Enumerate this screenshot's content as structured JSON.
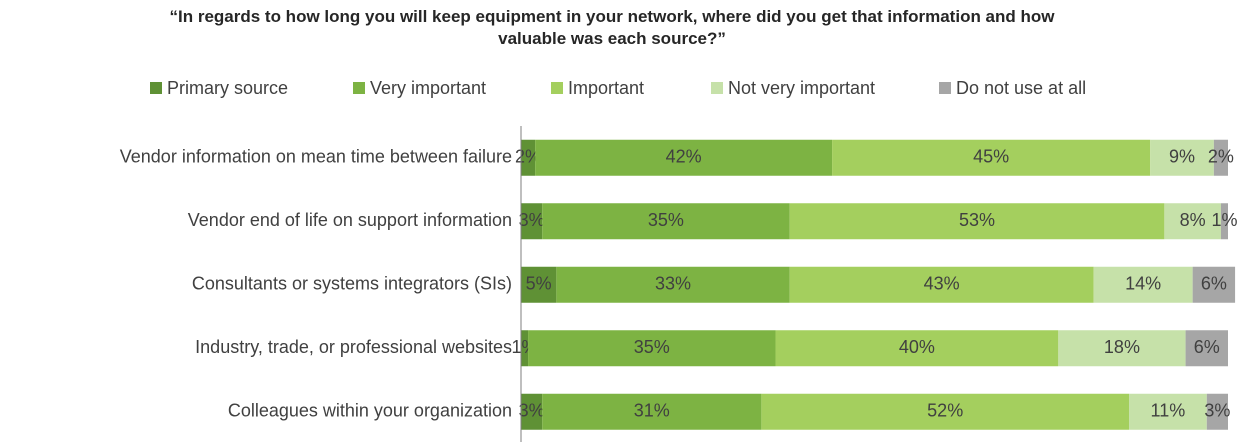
{
  "chart_data": {
    "type": "stacked-bar-horizontal",
    "title": "“In regards to how long you will keep equipment in your network, where did you get that information and how valuable was each source?”",
    "categories": [
      "Vendor information on mean time between failure",
      "Vendor end of life on support information",
      "Consultants or systems integrators (SIs)",
      "Industry, trade, or professional websites",
      "Colleagues within your organization"
    ],
    "series": [
      {
        "name": "Primary source",
        "color": "#5f9135",
        "values": [
          2,
          3,
          5,
          1,
          3
        ],
        "value_labels": [
          "2%",
          "3%",
          "5%",
          "1%",
          "3%"
        ]
      },
      {
        "name": "Very important",
        "color": "#7db343",
        "values": [
          42,
          35,
          33,
          35,
          31
        ],
        "value_labels": [
          "42%",
          "35%",
          "33%",
          "35%",
          "31%"
        ]
      },
      {
        "name": "Important",
        "color": "#a4cf5e",
        "values": [
          45,
          53,
          43,
          40,
          52
        ],
        "value_labels": [
          "45%",
          "53%",
          "43%",
          "40%",
          "52%"
        ]
      },
      {
        "name": "Not very important",
        "color": "#c6e1a9",
        "values": [
          9,
          8,
          14,
          18,
          11
        ],
        "value_labels": [
          "9%",
          "8%",
          "14%",
          "18%",
          "11%"
        ]
      },
      {
        "name": "Do not use at all",
        "color": "#a6a6a6",
        "values": [
          2,
          1,
          6,
          6,
          3
        ],
        "value_labels": [
          "2%",
          "1%",
          "6%",
          "6%",
          "3%"
        ]
      }
    ],
    "legend": "top"
  }
}
